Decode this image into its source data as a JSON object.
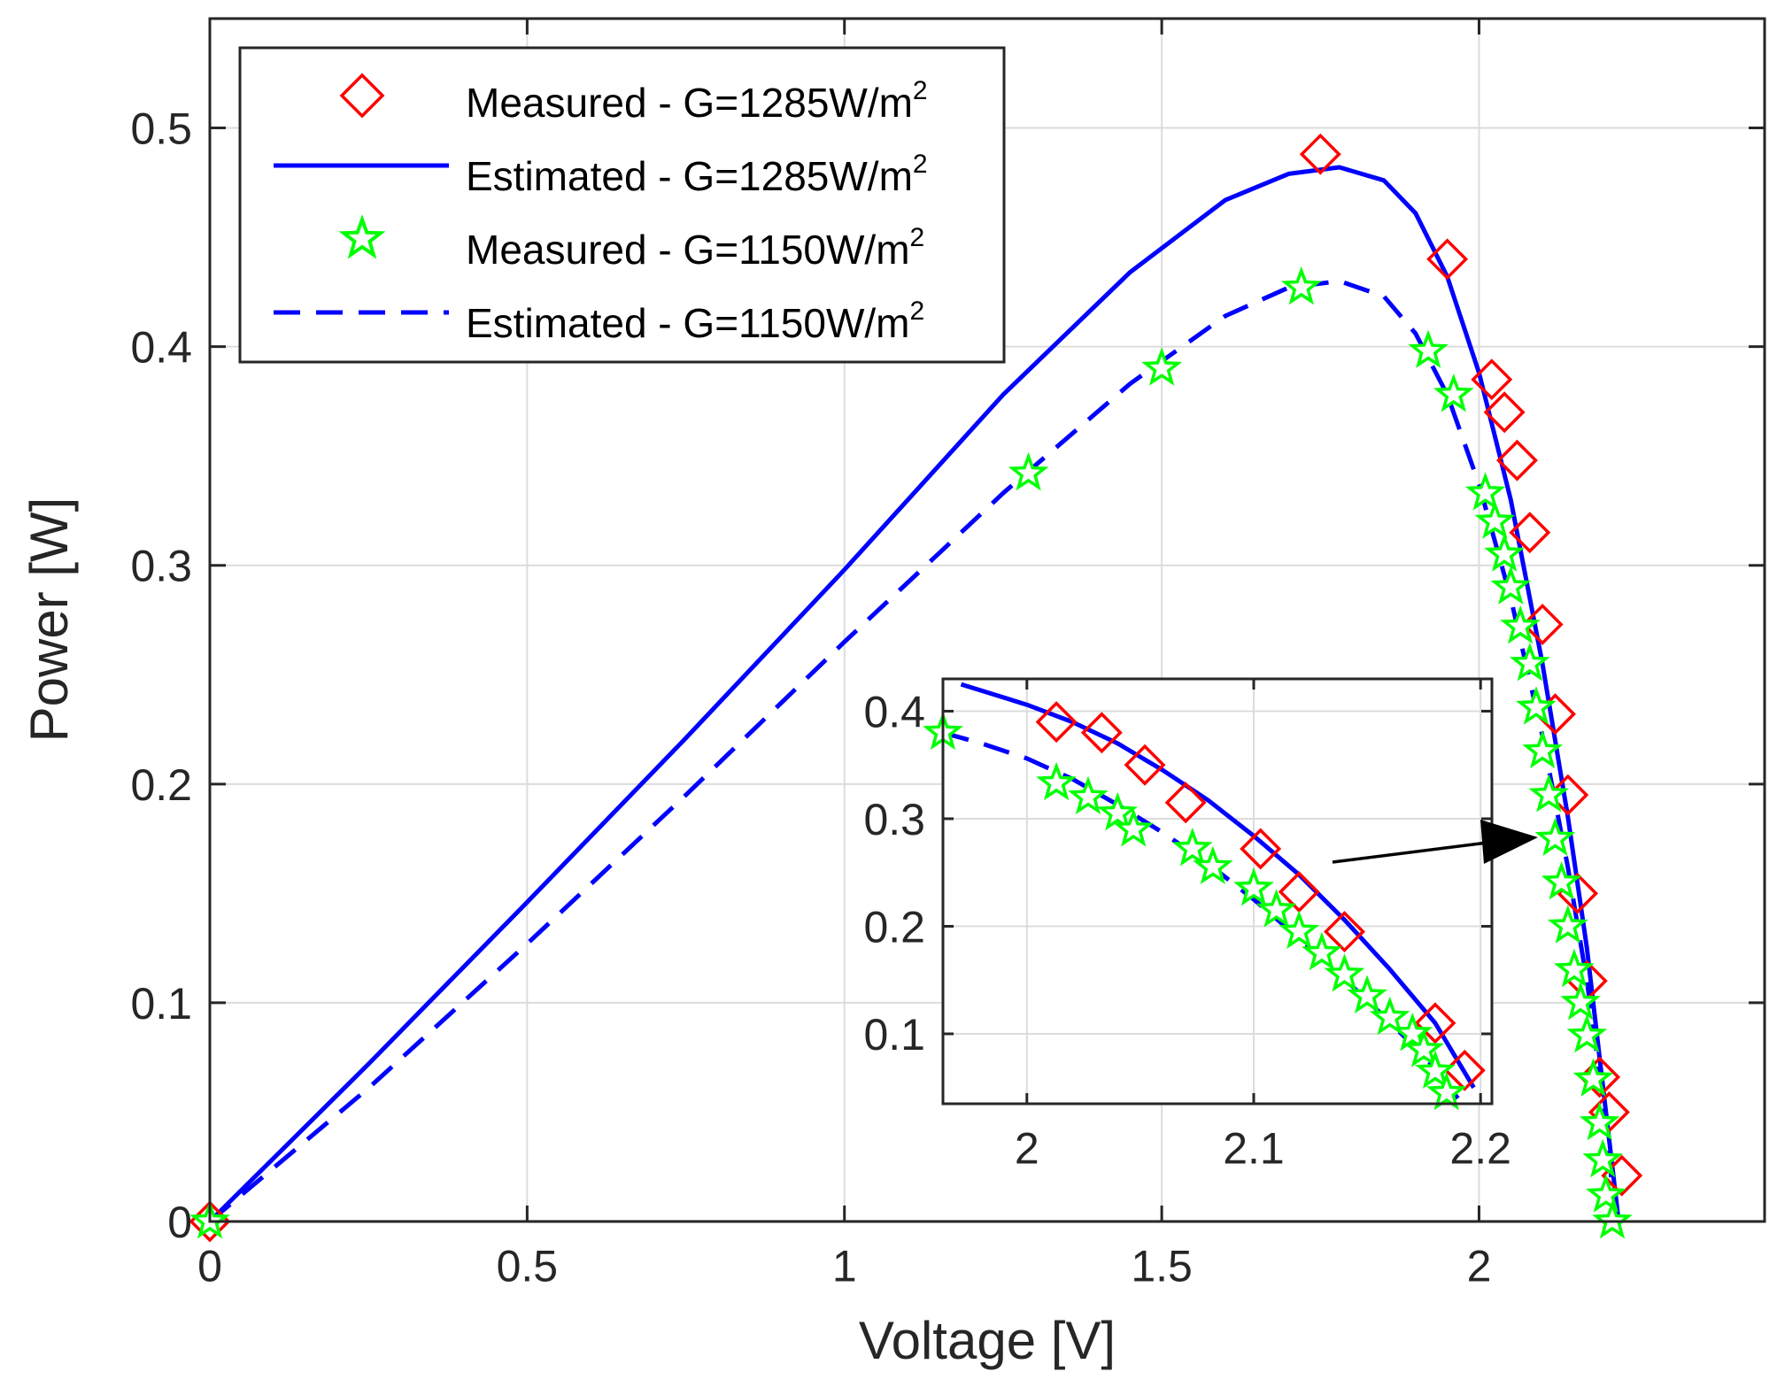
{
  "chart_data": {
    "type": "scatter",
    "xlabel": "Voltage [V]",
    "ylabel": "Power [W]",
    "xlim": [
      0,
      2.45
    ],
    "ylim": [
      0,
      0.55
    ],
    "xticks": [
      0,
      0.5,
      1,
      1.5,
      2
    ],
    "yticks": [
      0,
      0.1,
      0.2,
      0.3,
      0.4,
      0.5
    ],
    "xtick_labels": [
      "0",
      "0.5",
      "1",
      "1.5",
      "2"
    ],
    "ytick_labels": [
      "0",
      "0.1",
      "0.2",
      "0.3",
      "0.4",
      "0.5"
    ],
    "grid": true,
    "legend_position": "top-left",
    "colors": {
      "measured_1285": "#ff0000",
      "estimated": "#0000ff",
      "measured_1150_stroke": "#00ff00",
      "measured_1150_fill": "#ffffff",
      "grid": "#dcdcdc",
      "arrow": "#000000"
    },
    "series": [
      {
        "name": "Measured - G=1285W/m",
        "sup": "2",
        "style": "diamond",
        "x": [
          0,
          1.75,
          1.95,
          2.02,
          2.04,
          2.06,
          2.08,
          2.1,
          2.12,
          2.14,
          2.155,
          2.17,
          2.19,
          2.205,
          2.225
        ],
        "y": [
          0.0,
          0.488,
          0.44,
          0.385,
          0.37,
          0.348,
          0.315,
          0.273,
          0.232,
          0.195,
          0.15,
          0.11,
          0.066,
          0.05,
          0.021
        ]
      },
      {
        "name": "Estimated - G=1285W/m",
        "sup": "2",
        "style": "solid",
        "x": [
          0,
          0.25,
          0.5,
          0.75,
          1.0,
          1.25,
          1.45,
          1.6,
          1.7,
          1.78,
          1.85,
          1.9,
          1.95,
          2.0,
          2.05,
          2.1,
          2.14,
          2.17,
          2.19,
          2.21,
          2.22
        ],
        "y": [
          0,
          0.072,
          0.146,
          0.221,
          0.298,
          0.378,
          0.434,
          0.467,
          0.479,
          0.482,
          0.476,
          0.461,
          0.432,
          0.388,
          0.33,
          0.255,
          0.185,
          0.125,
          0.075,
          0.025,
          0.0
        ]
      },
      {
        "name": "Measured - G=1150W/m",
        "sup": "2",
        "style": "star",
        "x": [
          0,
          1.29,
          1.5,
          1.72,
          1.92,
          1.96,
          2.01,
          2.025,
          2.04,
          2.05,
          2.065,
          2.08,
          2.09,
          2.1,
          2.11,
          2.12,
          2.13,
          2.14,
          2.15,
          2.16,
          2.17,
          2.18,
          2.19,
          2.195,
          2.2,
          2.21
        ],
        "y": [
          0.0,
          0.342,
          0.39,
          0.427,
          0.398,
          0.378,
          0.333,
          0.32,
          0.305,
          0.29,
          0.272,
          0.255,
          0.235,
          0.215,
          0.195,
          0.175,
          0.155,
          0.135,
          0.115,
          0.1,
          0.085,
          0.065,
          0.045,
          0.028,
          0.012,
          0.0
        ]
      },
      {
        "name": "Estimated - G=1150W/m",
        "sup": "2",
        "style": "dashed",
        "x": [
          0,
          0.25,
          0.5,
          0.75,
          1.0,
          1.25,
          1.45,
          1.6,
          1.7,
          1.78,
          1.85,
          1.9,
          1.95,
          2.0,
          2.05,
          2.1,
          2.14,
          2.17,
          2.19,
          2.205,
          2.215
        ],
        "y": [
          0,
          0.061,
          0.127,
          0.195,
          0.265,
          0.333,
          0.383,
          0.414,
          0.427,
          0.43,
          0.423,
          0.406,
          0.378,
          0.337,
          0.285,
          0.222,
          0.162,
          0.11,
          0.068,
          0.03,
          0.0
        ]
      }
    ],
    "inset": {
      "xlim": [
        1.963,
        2.205
      ],
      "ylim": [
        0.035,
        0.43
      ],
      "xticks": [
        2,
        2.1,
        2.2
      ],
      "yticks": [
        0.1,
        0.2,
        0.3,
        0.4
      ],
      "xtick_labels": [
        "2",
        "2.1",
        "2.2"
      ],
      "ytick_labels": [
        "0.1",
        "0.2",
        "0.3",
        "0.4"
      ],
      "series": [
        {
          "style": "solid",
          "x": [
            1.971,
            2.0,
            2.02,
            2.04,
            2.06,
            2.08,
            2.1,
            2.12,
            2.14,
            2.16,
            2.18,
            2.197
          ],
          "y": [
            0.425,
            0.406,
            0.39,
            0.37,
            0.345,
            0.317,
            0.284,
            0.248,
            0.206,
            0.16,
            0.11,
            0.05
          ]
        },
        {
          "style": "dashed",
          "x": [
            1.963,
            1.98,
            2.0,
            2.02,
            2.04,
            2.06,
            2.08,
            2.1,
            2.12,
            2.14,
            2.16,
            2.18,
            2.19
          ],
          "y": [
            0.38,
            0.37,
            0.356,
            0.337,
            0.313,
            0.287,
            0.258,
            0.225,
            0.189,
            0.151,
            0.111,
            0.068,
            0.04
          ]
        },
        {
          "style": "diamond",
          "x": [
            2.013,
            2.033,
            2.052,
            2.07,
            2.103,
            2.12,
            2.14,
            2.18,
            2.193
          ],
          "y": [
            0.39,
            0.38,
            0.35,
            0.315,
            0.272,
            0.232,
            0.195,
            0.11,
            0.066
          ]
        },
        {
          "style": "star",
          "x": [
            1.963,
            2.013,
            2.027,
            2.04,
            2.047,
            2.073,
            2.082,
            2.1,
            2.11,
            2.12,
            2.13,
            2.14,
            2.15,
            2.16,
            2.17,
            2.175,
            2.18,
            2.185
          ],
          "y": [
            0.38,
            0.333,
            0.32,
            0.305,
            0.29,
            0.272,
            0.255,
            0.235,
            0.215,
            0.195,
            0.175,
            0.155,
            0.135,
            0.115,
            0.1,
            0.085,
            0.065,
            0.045
          ]
        }
      ]
    }
  }
}
